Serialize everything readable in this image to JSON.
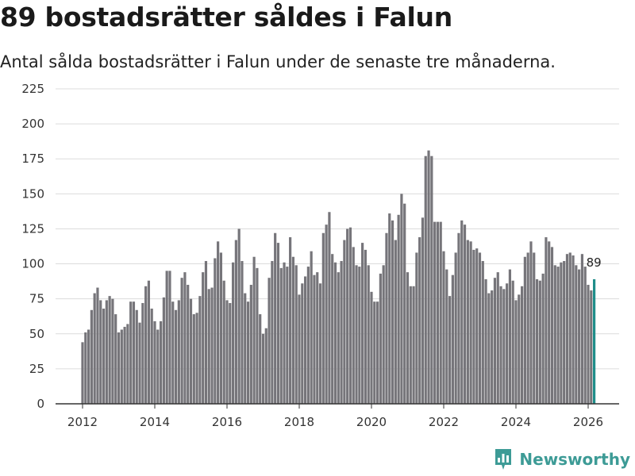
{
  "header": {
    "title": "89 bostadsrätter såldes i Falun",
    "subtitle": "Antal sålda bostadsrätter i Falun under de senaste tre månaderna."
  },
  "brand": {
    "name": "Newsworthy",
    "icon": "newsworthy-logo-icon"
  },
  "colors": {
    "bar": "#76757a",
    "highlight": "#1f8e8a",
    "grid": "#dcdcdc",
    "axis": "#333333",
    "brand": "#3d9b96"
  },
  "chart_data": {
    "type": "bar",
    "title": "89 bostadsrätter såldes i Falun",
    "xlabel": "",
    "ylabel": "",
    "ylim": [
      0,
      225
    ],
    "yticks": [
      0,
      25,
      50,
      75,
      100,
      125,
      150,
      175,
      200,
      225
    ],
    "xlim": [
      2011.5,
      2026.7
    ],
    "xticks": [
      2012,
      2014,
      2016,
      2018,
      2020,
      2022,
      2024,
      2026
    ],
    "start_year": 2012,
    "bars_per_year": 12,
    "highlight_last": true,
    "last_label": "89",
    "values": [
      44,
      51,
      53,
      67,
      79,
      83,
      74,
      68,
      74,
      77,
      75,
      64,
      51,
      53,
      55,
      57,
      73,
      73,
      67,
      58,
      72,
      84,
      88,
      68,
      59,
      53,
      59,
      76,
      95,
      95,
      73,
      67,
      74,
      90,
      94,
      85,
      75,
      64,
      65,
      77,
      94,
      102,
      82,
      83,
      104,
      116,
      108,
      88,
      74,
      72,
      101,
      117,
      125,
      102,
      79,
      73,
      85,
      105,
      97,
      64,
      50,
      54,
      90,
      102,
      122,
      115,
      97,
      101,
      98,
      119,
      105,
      99,
      78,
      86,
      91,
      98,
      109,
      92,
      94,
      86,
      122,
      128,
      137,
      107,
      101,
      94,
      102,
      117,
      125,
      126,
      112,
      99,
      98,
      115,
      110,
      99,
      80,
      73,
      73,
      93,
      99,
      122,
      136,
      131,
      117,
      135,
      150,
      143,
      94,
      84,
      84,
      108,
      119,
      133,
      177,
      181,
      177,
      130,
      130,
      130,
      109,
      96,
      77,
      92,
      108,
      122,
      131,
      128,
      117,
      116,
      110,
      111,
      108,
      102,
      89,
      79,
      81,
      90,
      94,
      84,
      82,
      86,
      96,
      88,
      74,
      78,
      84,
      105,
      108,
      116,
      108,
      89,
      88,
      93,
      119,
      116,
      112,
      99,
      98,
      101,
      102,
      107,
      108,
      106,
      99,
      96,
      107,
      98,
      85,
      81,
      89
    ]
  }
}
